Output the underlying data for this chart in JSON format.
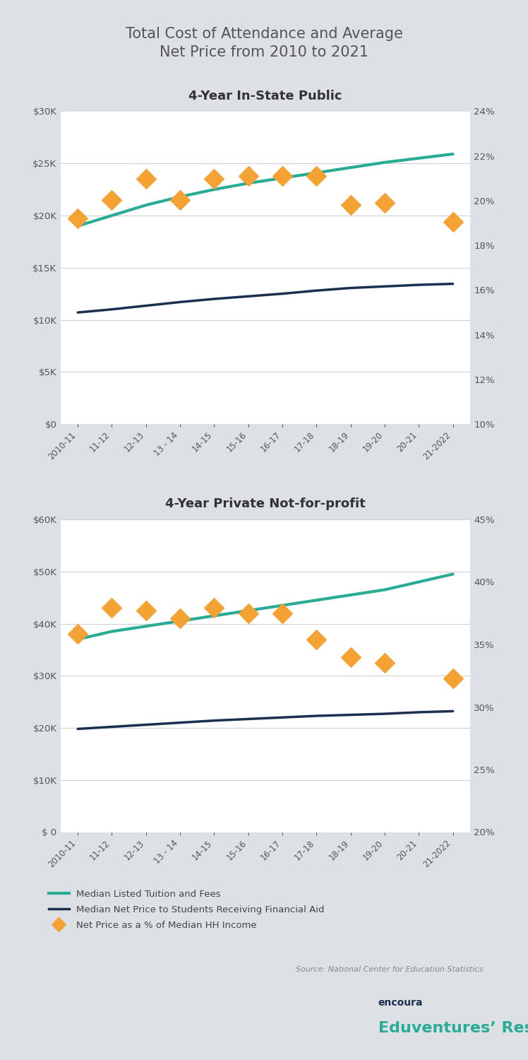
{
  "title": "Total Cost of Attendance and Average\nNet Price from 2010 to 2021",
  "x_labels": [
    "2010-11",
    "11-12",
    "12-13",
    "13 - 14",
    "14-15",
    "15-16",
    "16-17",
    "17-18",
    "18-19",
    "19-20",
    "20-21",
    "21-2022"
  ],
  "chart1": {
    "title": "4-Year In-State Public",
    "teal_line": [
      19000,
      20000,
      21000,
      21800,
      22500,
      23100,
      23600,
      24100,
      24600,
      25100,
      25500,
      25900
    ],
    "navy_line": [
      10700,
      11000,
      11350,
      11700,
      12000,
      12250,
      12500,
      12800,
      13050,
      13200,
      13350,
      13450
    ],
    "diamonds": [
      19700,
      21500,
      23500,
      21500,
      23500,
      23800,
      23800,
      23800,
      21000,
      21200,
      null,
      19400
    ],
    "ylim_left": [
      0,
      30000
    ],
    "ylim_right": [
      0.1,
      0.24
    ],
    "yticks_left": [
      0,
      5000,
      10000,
      15000,
      20000,
      25000,
      30000
    ],
    "yticks_left_labels": [
      "$0",
      "$5K",
      "$10K",
      "$15K",
      "$20K",
      "$25K",
      "$30K"
    ],
    "yticks_right": [
      0.1,
      0.12,
      0.14,
      0.16,
      0.18,
      0.2,
      0.22,
      0.24
    ]
  },
  "chart2": {
    "title": "4-Year Private Not-for-profit",
    "teal_line": [
      37000,
      38500,
      39500,
      40500,
      41500,
      42500,
      43500,
      44500,
      45500,
      46500,
      48000,
      49500
    ],
    "navy_line": [
      19800,
      20200,
      20600,
      21000,
      21400,
      21700,
      22000,
      22300,
      22500,
      22700,
      23000,
      23200
    ],
    "diamonds": [
      38000,
      43000,
      42500,
      41000,
      43000,
      42000,
      42000,
      37000,
      33500,
      32500,
      null,
      29500
    ],
    "ylim_left": [
      0,
      60000
    ],
    "ylim_right": [
      0.2,
      0.45
    ],
    "yticks_left": [
      0,
      10000,
      20000,
      30000,
      40000,
      50000,
      60000
    ],
    "yticks_left_labels": [
      "$ 0",
      "$10K",
      "$20K",
      "$30K",
      "$40K",
      "$50K",
      "$60K"
    ],
    "yticks_right": [
      0.2,
      0.25,
      0.3,
      0.35,
      0.4,
      0.45
    ]
  },
  "colors": {
    "teal": "#2aab96",
    "navy": "#1b2f50",
    "orange": "#f4a234",
    "background_outer": "#dde1e6",
    "background_chart": "#ffffff",
    "grid": "#d0d0d0",
    "title_color": "#555555",
    "axis_label_color": "#555555"
  },
  "legend": {
    "teal_label": "Median Listed Tuition and Fees",
    "navy_label": "Median Net Price to Students Receiving Financial Aid",
    "diamond_label": "Net Price as a % of Median HH Income"
  },
  "source": "Source: National Center for Education Statistics",
  "logo_text1": "encoura",
  "logo_text2": "Eduventures’ Research"
}
